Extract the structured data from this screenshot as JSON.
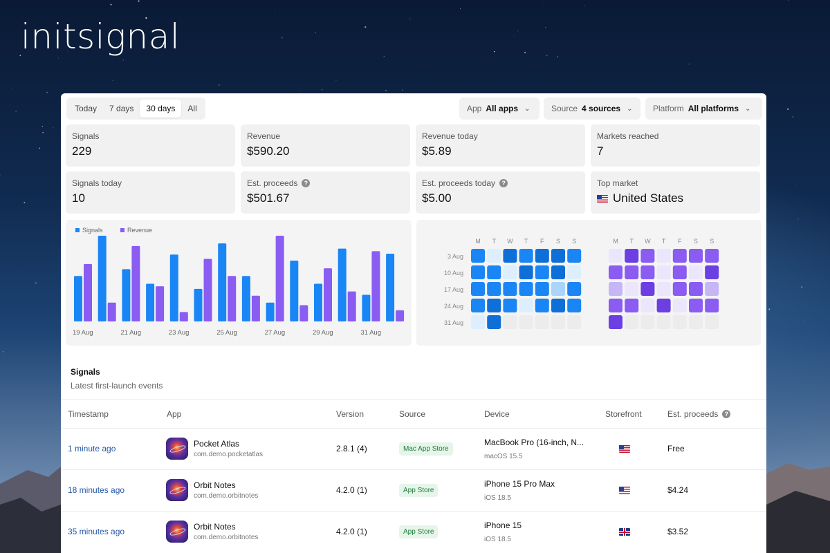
{
  "brand": "initsignal",
  "range_tabs": [
    {
      "label": "Today",
      "active": false
    },
    {
      "label": "7 days",
      "active": false
    },
    {
      "label": "30 days",
      "active": true
    },
    {
      "label": "All",
      "active": false
    }
  ],
  "filters": {
    "app": {
      "label": "App",
      "value": "All apps"
    },
    "source": {
      "label": "Source",
      "value": "4 sources"
    },
    "platform": {
      "label": "Platform",
      "value": "All platforms"
    }
  },
  "stats": [
    {
      "label": "Signals",
      "value": "229"
    },
    {
      "label": "Revenue",
      "value": "$590.20"
    },
    {
      "label": "Revenue today",
      "value": "$5.89"
    },
    {
      "label": "Markets reached",
      "value": "7"
    },
    {
      "label": "Signals today",
      "value": "10"
    },
    {
      "label": "Est. proceeds",
      "value": "$501.67",
      "help": "?"
    },
    {
      "label": "Est. proceeds today",
      "value": "$5.00",
      "help": "?"
    },
    {
      "label": "Top market",
      "value": "United States"
    }
  ],
  "chart_data": {
    "type": "bar",
    "legend": [
      "Signals",
      "Revenue"
    ],
    "colors": {
      "signals": "#1a86f5",
      "revenue": "#8a5cf2"
    },
    "x_labels": [
      "19 Aug",
      "21 Aug",
      "23 Aug",
      "25 Aug",
      "27 Aug",
      "29 Aug",
      "31 Aug"
    ],
    "series": [
      {
        "name": "Signals",
        "values": [
          0.53,
          1.0,
          0.61,
          0.44,
          0.78,
          0.38,
          0.91,
          0.53,
          0.22,
          0.71,
          0.44,
          0.85,
          0.31,
          0.79
        ]
      },
      {
        "name": "Revenue",
        "values": [
          0.67,
          0.22,
          0.88,
          0.41,
          0.11,
          0.73,
          0.53,
          0.3,
          1.0,
          0.19,
          0.62,
          0.35,
          0.82,
          0.13
        ]
      }
    ]
  },
  "heatmap": {
    "days": [
      "M",
      "T",
      "W",
      "T",
      "F",
      "S",
      "S"
    ],
    "weeks": [
      "3 Aug",
      "10 Aug",
      "17 Aug",
      "24 Aug",
      "31 Aug"
    ],
    "signals_levels": [
      [
        3,
        1,
        4,
        3,
        4,
        4,
        3
      ],
      [
        3,
        3,
        1,
        4,
        3,
        4,
        1
      ],
      [
        3,
        3,
        3,
        3,
        3,
        2,
        3
      ],
      [
        3,
        4,
        3,
        1,
        3,
        4,
        3
      ],
      [
        1,
        4,
        0,
        0,
        0,
        0,
        0
      ]
    ],
    "revenue_levels": [
      [
        1,
        4,
        3,
        1,
        3,
        3,
        3
      ],
      [
        3,
        3,
        3,
        1,
        3,
        1,
        4
      ],
      [
        2,
        1,
        4,
        1,
        3,
        3,
        2
      ],
      [
        3,
        3,
        1,
        4,
        1,
        3,
        3
      ],
      [
        4,
        0,
        0,
        0,
        0,
        0,
        0
      ]
    ]
  },
  "signals_section": {
    "title": "Signals",
    "subtitle": "Latest first-launch events"
  },
  "table": {
    "headers": [
      "Timestamp",
      "App",
      "Version",
      "Source",
      "Device",
      "Storefront",
      "Est. proceeds"
    ],
    "rows": [
      {
        "timestamp": "1 minute ago",
        "app": "Pocket Atlas",
        "bundle": "com.demo.pocketatlas",
        "version": "2.8.1 (4)",
        "source": "Mac App Store",
        "device": "MacBook Pro (16-inch, N...",
        "os": "macOS 15.5",
        "storefront": "us",
        "proceeds": "Free"
      },
      {
        "timestamp": "18 minutes ago",
        "app": "Orbit Notes",
        "bundle": "com.demo.orbitnotes",
        "version": "4.2.0 (1)",
        "source": "App Store",
        "device": "iPhone 15 Pro Max",
        "os": "iOS 18.5",
        "storefront": "us",
        "proceeds": "$4.24"
      },
      {
        "timestamp": "35 minutes ago",
        "app": "Orbit Notes",
        "bundle": "com.demo.orbitnotes",
        "version": "4.2.0 (1)",
        "source": "App Store",
        "device": "iPhone 15",
        "os": "iOS 18.5",
        "storefront": "gb",
        "proceeds": "$3.52"
      }
    ]
  }
}
